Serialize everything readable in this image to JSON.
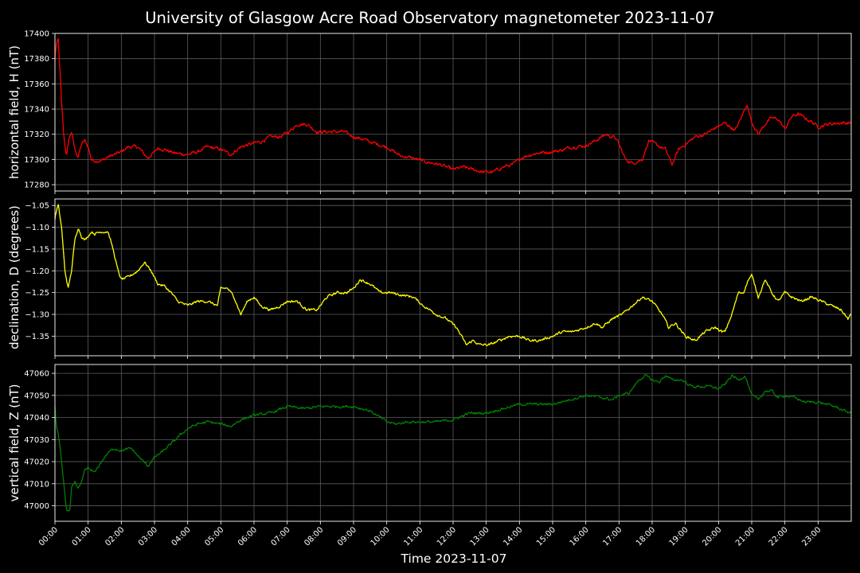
{
  "chart_data": {
    "type": "line",
    "title": "University of Glasgow Acre Road Observatory magnetometer 2023-11-07",
    "xlabel": "Time 2023-11-07",
    "x_unit": "hours",
    "x_ticks": [
      "00:00",
      "01:00",
      "02:00",
      "03:00",
      "04:00",
      "05:00",
      "06:00",
      "07:00",
      "08:00",
      "09:00",
      "10:00",
      "11:00",
      "12:00",
      "13:00",
      "14:00",
      "15:00",
      "16:00",
      "17:00",
      "18:00",
      "19:00",
      "20:00",
      "21:00",
      "22:00",
      "23:00"
    ],
    "xlim": [
      0,
      24
    ],
    "grid": true,
    "panels": [
      {
        "ylabel": "horizontal field, H (nT)",
        "ylim": [
          17275,
          17400
        ],
        "y_ticks": [
          17280,
          17300,
          17320,
          17340,
          17360,
          17380,
          17400
        ],
        "y_tick_labels": [
          "17280",
          "17300",
          "17320",
          "17340",
          "17360",
          "17380",
          "17400"
        ],
        "color": "#ff0000",
        "noise": 1.6,
        "x": [
          0,
          0.03,
          0.1,
          0.14,
          0.2,
          0.27,
          0.35,
          0.42,
          0.5,
          0.6,
          0.7,
          0.8,
          0.9,
          1.0,
          1.1,
          1.2,
          1.4,
          1.6,
          1.8,
          2.0,
          2.2,
          2.5,
          2.8,
          3.0,
          3.1,
          3.3,
          3.6,
          4.0,
          4.3,
          4.6,
          5.0,
          5.3,
          5.6,
          6.0,
          6.2,
          6.5,
          6.8,
          7.1,
          7.3,
          7.6,
          7.9,
          8.3,
          8.7,
          9.0,
          9.3,
          9.6,
          10.0,
          10.4,
          10.8,
          11.2,
          11.6,
          12.0,
          12.3,
          12.6,
          12.9,
          13.2,
          13.5,
          13.8,
          14.1,
          14.5,
          14.9,
          15.2,
          15.6,
          16.0,
          16.3,
          16.6,
          16.9,
          17.0,
          17.2,
          17.4,
          17.7,
          17.9,
          18.1,
          18.4,
          18.6,
          18.8,
          19.0,
          19.3,
          19.6,
          19.9,
          20.2,
          20.5,
          20.7,
          20.85,
          21.0,
          21.2,
          21.4,
          21.6,
          21.8,
          22.0,
          22.2,
          22.4,
          22.6,
          22.8,
          23.0,
          23.3,
          23.6,
          23.85,
          24.0
        ],
        "y": [
          17378,
          17390,
          17395,
          17375,
          17345,
          17318,
          17302,
          17316,
          17322,
          17308,
          17302,
          17312,
          17315,
          17310,
          17300,
          17299,
          17299,
          17302,
          17304,
          17306,
          17310,
          17310,
          17301,
          17306,
          17309,
          17308,
          17305,
          17304,
          17306,
          17310,
          17308,
          17304,
          17310,
          17313,
          17314,
          17318,
          17318,
          17323,
          17328,
          17328,
          17322,
          17322,
          17322,
          17318,
          17316,
          17313,
          17310,
          17303,
          17301,
          17298,
          17296,
          17292,
          17294,
          17292,
          17290,
          17290,
          17294,
          17296,
          17302,
          17305,
          17306,
          17307,
          17310,
          17311,
          17315,
          17320,
          17317,
          17312,
          17300,
          17297,
          17300,
          17315,
          17312,
          17308,
          17296,
          17308,
          17312,
          17318,
          17320,
          17325,
          17329,
          17323,
          17334,
          17344,
          17330,
          17320,
          17328,
          17333,
          17332,
          17324,
          17334,
          17336,
          17333,
          17330,
          17326,
          17328,
          17329,
          17329,
          17329
        ]
      },
      {
        "ylabel": "declination, D (degrees)",
        "ylim": [
          -1.395,
          -1.035
        ],
        "y_ticks": [
          -1.35,
          -1.3,
          -1.25,
          -1.2,
          -1.15,
          -1.1,
          -1.05
        ],
        "y_tick_labels": [
          "−1.35",
          "−1.30",
          "−1.25",
          "−1.20",
          "−1.15",
          "−1.10",
          "−1.05"
        ],
        "color": "#ffff00",
        "noise": 0.0035,
        "x": [
          0,
          0.05,
          0.1,
          0.2,
          0.3,
          0.4,
          0.5,
          0.6,
          0.7,
          0.8,
          0.9,
          1.0,
          1.1,
          1.2,
          1.4,
          1.6,
          1.75,
          1.9,
          2.0,
          2.2,
          2.5,
          2.7,
          2.9,
          3.1,
          3.3,
          3.5,
          3.7,
          4.0,
          4.3,
          4.6,
          4.9,
          5.0,
          5.2,
          5.4,
          5.6,
          5.8,
          6.0,
          6.2,
          6.5,
          6.8,
          7.0,
          7.3,
          7.6,
          7.9,
          8.2,
          8.5,
          8.8,
          9.0,
          9.2,
          9.5,
          9.8,
          10.1,
          10.4,
          10.8,
          11.1,
          11.5,
          11.8,
          12.1,
          12.4,
          12.6,
          12.8,
          13.1,
          13.4,
          13.7,
          14.0,
          14.3,
          14.6,
          15.0,
          15.3,
          15.6,
          16.0,
          16.3,
          16.5,
          16.8,
          17.1,
          17.4,
          17.7,
          18.0,
          18.3,
          18.5,
          18.7,
          19.0,
          19.3,
          19.6,
          19.9,
          20.1,
          20.2,
          20.4,
          20.6,
          20.75,
          20.9,
          21.0,
          21.2,
          21.4,
          21.6,
          21.8,
          22.0,
          22.2,
          22.5,
          22.8,
          23.1,
          23.4,
          23.7,
          23.9,
          24.0
        ],
        "y": [
          -1.08,
          -1.06,
          -1.05,
          -1.1,
          -1.2,
          -1.24,
          -1.2,
          -1.13,
          -1.1,
          -1.12,
          -1.13,
          -1.12,
          -1.11,
          -1.115,
          -1.11,
          -1.11,
          -1.15,
          -1.2,
          -1.22,
          -1.215,
          -1.2,
          -1.18,
          -1.2,
          -1.23,
          -1.235,
          -1.25,
          -1.27,
          -1.28,
          -1.27,
          -1.27,
          -1.28,
          -1.24,
          -1.24,
          -1.26,
          -1.3,
          -1.27,
          -1.26,
          -1.28,
          -1.29,
          -1.28,
          -1.27,
          -1.27,
          -1.29,
          -1.29,
          -1.26,
          -1.25,
          -1.25,
          -1.24,
          -1.22,
          -1.23,
          -1.25,
          -1.25,
          -1.255,
          -1.26,
          -1.28,
          -1.3,
          -1.31,
          -1.33,
          -1.37,
          -1.36,
          -1.37,
          -1.37,
          -1.36,
          -1.35,
          -1.35,
          -1.36,
          -1.36,
          -1.35,
          -1.34,
          -1.34,
          -1.33,
          -1.32,
          -1.33,
          -1.31,
          -1.3,
          -1.28,
          -1.26,
          -1.27,
          -1.3,
          -1.33,
          -1.32,
          -1.35,
          -1.36,
          -1.34,
          -1.33,
          -1.34,
          -1.34,
          -1.3,
          -1.25,
          -1.25,
          -1.22,
          -1.21,
          -1.26,
          -1.22,
          -1.25,
          -1.27,
          -1.25,
          -1.26,
          -1.27,
          -1.26,
          -1.27,
          -1.28,
          -1.29,
          -1.31,
          -1.3
        ]
      },
      {
        "ylabel": "vertical field, Z (nT)",
        "ylim": [
          46993,
          47064
        ],
        "y_ticks": [
          47000,
          47010,
          47020,
          47030,
          47040,
          47050,
          47060
        ],
        "y_tick_labels": [
          "47000",
          "47010",
          "47020",
          "47030",
          "47040",
          "47050",
          "47060"
        ],
        "color": "#008000",
        "noise": 0.7,
        "x": [
          0,
          0.05,
          0.1,
          0.2,
          0.3,
          0.35,
          0.45,
          0.5,
          0.6,
          0.7,
          0.8,
          0.9,
          1.0,
          1.2,
          1.4,
          1.6,
          1.8,
          2.0,
          2.3,
          2.6,
          2.8,
          3.0,
          3.2,
          3.5,
          3.7,
          4.0,
          4.3,
          4.6,
          5.0,
          5.3,
          5.6,
          6.0,
          6.5,
          7.0,
          7.5,
          8.0,
          8.5,
          9.0,
          9.5,
          10.0,
          10.3,
          10.6,
          11.0,
          11.5,
          12.0,
          12.5,
          13.0,
          13.5,
          14.0,
          14.5,
          15.0,
          15.5,
          16.0,
          16.5,
          16.8,
          17.0,
          17.3,
          17.6,
          17.8,
          18.0,
          18.2,
          18.4,
          18.6,
          18.9,
          19.2,
          19.5,
          19.8,
          20.0,
          20.2,
          20.4,
          20.6,
          20.8,
          21.0,
          21.2,
          21.4,
          21.6,
          21.8,
          22.0,
          22.3,
          22.6,
          23.0,
          23.5,
          23.8,
          24.0
        ],
        "y": [
          47045,
          47035,
          47033,
          47020,
          47005,
          46998,
          46997,
          47008,
          47011,
          47008,
          47010,
          47016,
          47017,
          47015,
          47020,
          47024,
          47026,
          47025,
          47026,
          47021,
          47018,
          47022,
          47024,
          47028,
          47031,
          47035,
          47037,
          47038,
          47037,
          47036,
          47039,
          47041,
          47042,
          47045,
          47044,
          47045,
          47045,
          47045,
          47043,
          47038,
          47037,
          47038,
          47038,
          47038,
          47039,
          47042,
          47042,
          47044,
          47046,
          47046,
          47046,
          47048,
          47050,
          47049,
          47048,
          47050,
          47051,
          47057,
          47059,
          47057,
          47056,
          47059,
          47057,
          47057,
          47054,
          47054,
          47054,
          47053,
          47055,
          47059,
          47057,
          47059,
          47050,
          47048,
          47052,
          47052,
          47049,
          47050,
          47049,
          47047,
          47047,
          47045,
          47043,
          47042
        ]
      }
    ]
  }
}
